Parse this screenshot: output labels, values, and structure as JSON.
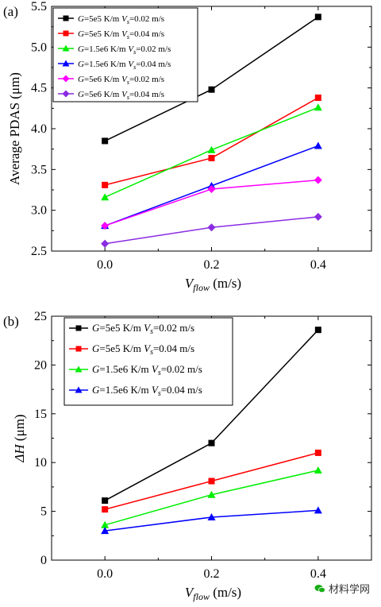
{
  "chart_data": [
    {
      "type": "line",
      "panel_label": "(a)",
      "xlabel_main": "V",
      "xlabel_sub": "flow",
      "xlabel_unit": " (m/s)",
      "ylabel": "Average PDAS (μm)",
      "x": [
        0.0,
        0.2,
        0.4
      ],
      "xlim": [
        -0.1,
        0.5
      ],
      "ylim": [
        2.5,
        5.5
      ],
      "xticks": [
        "0.0",
        "0.2",
        "0.4"
      ],
      "yticks": [
        "2.5",
        "3.0",
        "3.5",
        "4.0",
        "4.5",
        "5.0",
        "5.5"
      ],
      "legend_position": "top-left",
      "series": [
        {
          "name": "G=5e5 K/m Vs=0.02 m/s",
          "g": "5e5 K/m ",
          "vs": "=0.02 m/s",
          "color": "#000000",
          "marker": "square",
          "values": [
            3.85,
            4.48,
            5.37
          ]
        },
        {
          "name": "G=5e5 K/m Vs=0.04 m/s",
          "g": "5e5 K/m ",
          "vs": "=0.04 m/s",
          "color": "#ff0000",
          "marker": "square",
          "values": [
            3.31,
            3.64,
            4.38
          ]
        },
        {
          "name": "G=1.5e6 K/m Vs=0.02 m/s",
          "g": "1.5e6 K/m ",
          "vs": "=0.02 m/s",
          "color": "#00ee00",
          "marker": "triangle",
          "values": [
            3.16,
            3.74,
            4.26
          ]
        },
        {
          "name": "G=1.5e6 K/m Vs=0.04 m/s",
          "g": "1.5e6 K/m ",
          "vs": "=0.04 m/s",
          "color": "#0000ff",
          "marker": "triangle",
          "values": [
            2.81,
            3.3,
            3.79
          ]
        },
        {
          "name": "G=5e6 K/m Vs=0.02 m/s",
          "g": "5e6 K/m ",
          "vs": "=0.02 m/s",
          "color": "#ff00ff",
          "marker": "diamond",
          "values": [
            2.81,
            3.26,
            3.37
          ]
        },
        {
          "name": "G=5e6 K/m Vs=0.04 m/s",
          "g": "5e6 K/m ",
          "vs": "=0.04 m/s",
          "color": "#8a2be2",
          "marker": "diamond",
          "values": [
            2.59,
            2.79,
            2.92
          ]
        }
      ]
    },
    {
      "type": "line",
      "panel_label": "(b)",
      "xlabel_main": "V",
      "xlabel_sub": "flow",
      "xlabel_unit": " (m/s)",
      "ylabel_main": "ΔH",
      "ylabel_unit": " (μm)",
      "x": [
        0.0,
        0.2,
        0.4
      ],
      "xlim": [
        -0.1,
        0.5
      ],
      "ylim": [
        0,
        25
      ],
      "xticks": [
        "0.0",
        "0.2",
        "0.4"
      ],
      "yticks": [
        "0",
        "5",
        "10",
        "15",
        "20",
        "25"
      ],
      "legend_position": "top-left",
      "series": [
        {
          "name": "G=5e5 K/m Vs=0.02 m/s",
          "g": "5e5 K/m ",
          "vs": "=0.02 m/s",
          "color": "#000000",
          "marker": "square",
          "values": [
            6.1,
            12.0,
            23.6
          ]
        },
        {
          "name": "G=5e5 K/m Vs=0.04 m/s",
          "g": "5e5 K/m ",
          "vs": "=0.04 m/s",
          "color": "#ff0000",
          "marker": "square",
          "values": [
            5.2,
            8.1,
            11.0
          ]
        },
        {
          "name": "G=1.5e6 K/m Vs=0.02 m/s",
          "g": "1.5e6 K/m ",
          "vs": "=0.02 m/s",
          "color": "#00ee00",
          "marker": "triangle",
          "values": [
            3.6,
            6.7,
            9.2
          ]
        },
        {
          "name": "G=1.5e6 K/m Vs=0.04 m/s",
          "g": "1.5e6 K/m ",
          "vs": "=0.04 m/s",
          "color": "#0000ff",
          "marker": "triangle",
          "values": [
            3.0,
            4.4,
            5.1
          ]
        }
      ]
    }
  ],
  "watermark": {
    "text": "材料学网",
    "icon": "wechat-icon",
    "color": "#1aad19"
  }
}
